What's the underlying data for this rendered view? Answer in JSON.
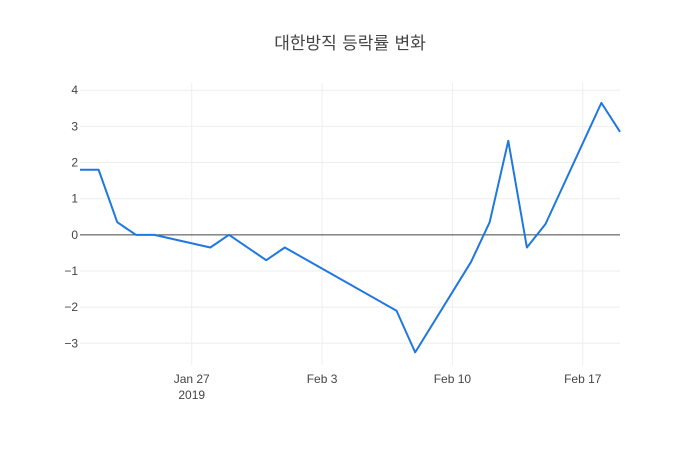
{
  "chart_data": {
    "type": "line",
    "title": "대한방직 등락률 변화",
    "xlabel": "",
    "ylabel": "",
    "x": [
      "2019-01-21",
      "2019-01-22",
      "2019-01-23",
      "2019-01-24",
      "2019-01-25",
      "2019-01-28",
      "2019-01-29",
      "2019-01-31",
      "2019-02-01",
      "2019-02-07",
      "2019-02-08",
      "2019-02-11",
      "2019-02-12",
      "2019-02-13",
      "2019-02-14",
      "2019-02-15",
      "2019-02-18",
      "2019-02-19"
    ],
    "series": [
      {
        "color": "#1f77e0",
        "values": [
          1.8,
          1.8,
          0.35,
          0.0,
          0.0,
          -0.35,
          0.0,
          -0.7,
          -0.35,
          -2.1,
          -3.25,
          -0.75,
          0.35,
          2.6,
          -0.35,
          0.3,
          3.65,
          2.85
        ]
      }
    ],
    "xlim": [
      "2019-01-21",
      "2019-02-19"
    ],
    "ylim": [
      -3.6,
      4.2
    ],
    "y_ticks": [
      4,
      3,
      2,
      1,
      0,
      -1,
      -2,
      -3
    ],
    "y_tick_labels": [
      "4",
      "3",
      "2",
      "1",
      "0",
      "−1",
      "−2",
      "−3"
    ],
    "x_ticks": [
      {
        "date": "2019-01-27",
        "label": "Jan 27",
        "sublabel": "2019"
      },
      {
        "date": "2019-02-03",
        "label": "Feb 3",
        "sublabel": ""
      },
      {
        "date": "2019-02-10",
        "label": "Feb 10",
        "sublabel": ""
      },
      {
        "date": "2019-02-17",
        "label": "Feb 17",
        "sublabel": ""
      }
    ],
    "grid": true,
    "zero_line": true
  }
}
